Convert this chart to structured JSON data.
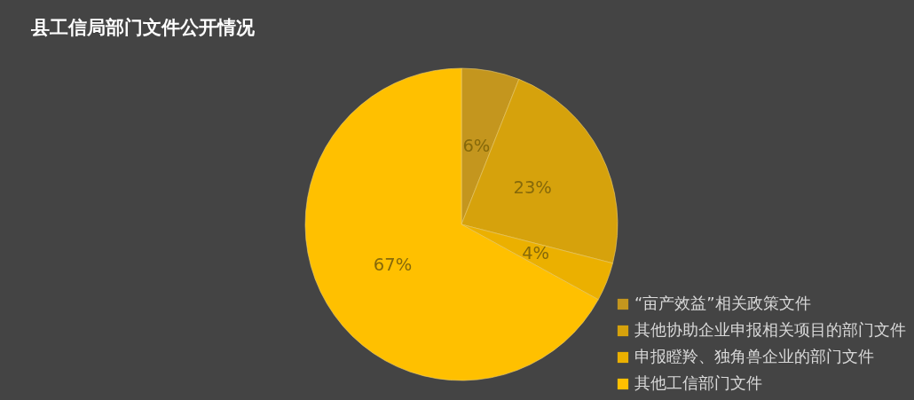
{
  "chart_data": {
    "type": "pie",
    "title": "县工信局部门文件公开情况",
    "categories": [
      "“亩产效益”相关政策文件",
      "其他协助企业申报相关项目的部门文件",
      "申报瞪羚、独角兽企业的部门文件",
      "其他工信部门文件"
    ],
    "values": [
      6,
      23,
      4,
      67
    ],
    "colors": [
      "#c4961e",
      "#d6a20c",
      "#ebb000",
      "#ffc000"
    ],
    "value_labels": [
      "6%",
      "23%",
      "4%",
      "67%"
    ],
    "legend": "bottom right"
  }
}
